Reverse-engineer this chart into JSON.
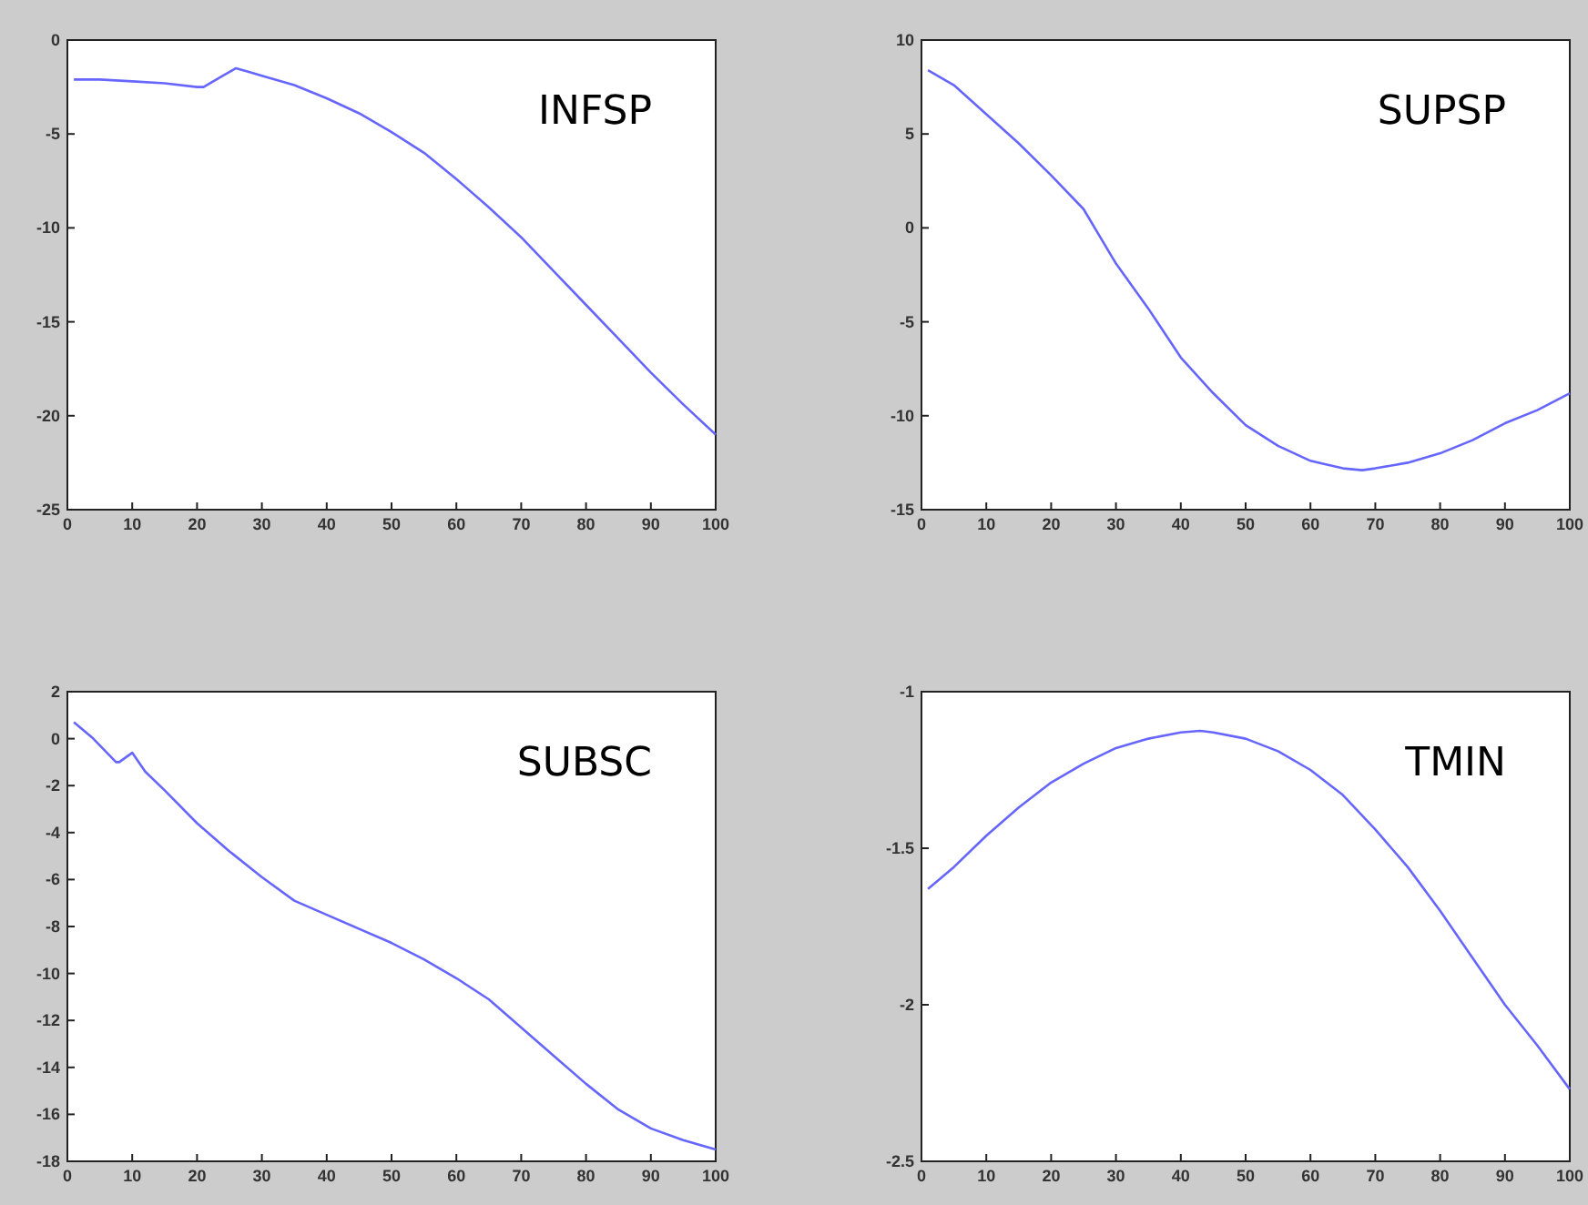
{
  "chart_data": [
    {
      "type": "line",
      "title": "INFSP",
      "x": [
        1,
        5,
        10,
        15,
        20,
        21,
        24,
        26,
        28,
        30,
        35,
        40,
        45,
        50,
        55,
        60,
        65,
        70,
        75,
        80,
        85,
        90,
        95,
        100
      ],
      "series": [
        {
          "color": "#6666ff",
          "values": [
            -2.1,
            -2.1,
            -2.2,
            -2.3,
            -2.5,
            -2.5,
            -1.9,
            -1.5,
            -1.7,
            -1.9,
            -2.4,
            -3.1,
            -3.9,
            -4.9,
            -6.0,
            -7.4,
            -8.9,
            -10.5,
            -12.3,
            -14.1,
            -15.9,
            -17.7,
            -19.4,
            -21.0
          ]
        }
      ],
      "xlim": [
        0,
        100
      ],
      "xticks": [
        0,
        10,
        20,
        30,
        40,
        50,
        60,
        70,
        80,
        90,
        100
      ],
      "ylim": [
        -25,
        0
      ],
      "yticks": [
        -25,
        -20,
        -15,
        -10,
        -5,
        0
      ]
    },
    {
      "type": "line",
      "title": "SUPSP",
      "x": [
        1,
        5,
        10,
        15,
        20,
        25,
        30,
        35,
        40,
        45,
        50,
        55,
        60,
        65,
        68,
        70,
        75,
        80,
        85,
        90,
        95,
        100
      ],
      "series": [
        {
          "color": "#6666ff",
          "values": [
            8.4,
            7.6,
            6.05,
            4.5,
            2.8,
            1.0,
            -1.9,
            -4.3,
            -6.9,
            -8.8,
            -10.5,
            -11.6,
            -12.4,
            -12.8,
            -12.9,
            -12.8,
            -12.5,
            -12.0,
            -11.3,
            -10.4,
            -9.7,
            -8.8
          ]
        }
      ],
      "xlim": [
        0,
        100
      ],
      "xticks": [
        0,
        10,
        20,
        30,
        40,
        50,
        60,
        70,
        80,
        90,
        100
      ],
      "ylim": [
        -15,
        10
      ],
      "yticks": [
        -15,
        -10,
        -5,
        0,
        5,
        10
      ]
    },
    {
      "type": "line",
      "title": "SUBSC",
      "x": [
        1,
        4,
        7.5,
        8,
        10,
        12,
        15,
        20,
        25,
        30,
        35,
        40,
        45,
        50,
        55,
        60,
        65,
        70,
        75,
        80,
        85,
        90,
        95,
        100
      ],
      "series": [
        {
          "color": "#6666ff",
          "values": [
            0.7,
            0,
            -1.0,
            -1.0,
            -0.6,
            -1.4,
            -2.2,
            -3.6,
            -4.8,
            -5.9,
            -6.9,
            -7.5,
            -8.1,
            -8.7,
            -9.4,
            -10.2,
            -11.1,
            -12.3,
            -13.5,
            -14.7,
            -15.8,
            -16.6,
            -17.1,
            -17.5
          ]
        }
      ],
      "xlim": [
        0,
        100
      ],
      "xticks": [
        0,
        10,
        20,
        30,
        40,
        50,
        60,
        70,
        80,
        90,
        100
      ],
      "ylim": [
        -18,
        2
      ],
      "yticks": [
        -18,
        -16,
        -14,
        -12,
        -10,
        -8,
        -6,
        -4,
        -2,
        0,
        2
      ]
    },
    {
      "type": "line",
      "title": "TMIN",
      "x": [
        1,
        5,
        10,
        15,
        20,
        25,
        30,
        35,
        40,
        43,
        45,
        50,
        55,
        60,
        65,
        70,
        75,
        80,
        85,
        90,
        95,
        100
      ],
      "series": [
        {
          "color": "#6666ff",
          "values": [
            -1.63,
            -1.56,
            -1.46,
            -1.37,
            -1.29,
            -1.23,
            -1.18,
            -1.15,
            -1.13,
            -1.125,
            -1.13,
            -1.15,
            -1.19,
            -1.25,
            -1.33,
            -1.44,
            -1.56,
            -1.7,
            -1.85,
            -2.0,
            -2.13,
            -2.27
          ]
        }
      ],
      "xlim": [
        0,
        100
      ],
      "xticks": [
        0,
        10,
        20,
        30,
        40,
        50,
        60,
        70,
        80,
        90,
        100
      ],
      "ylim": [
        -2.5,
        -1
      ],
      "yticks": [
        -2.5,
        -2,
        -1.5,
        -1
      ]
    }
  ]
}
